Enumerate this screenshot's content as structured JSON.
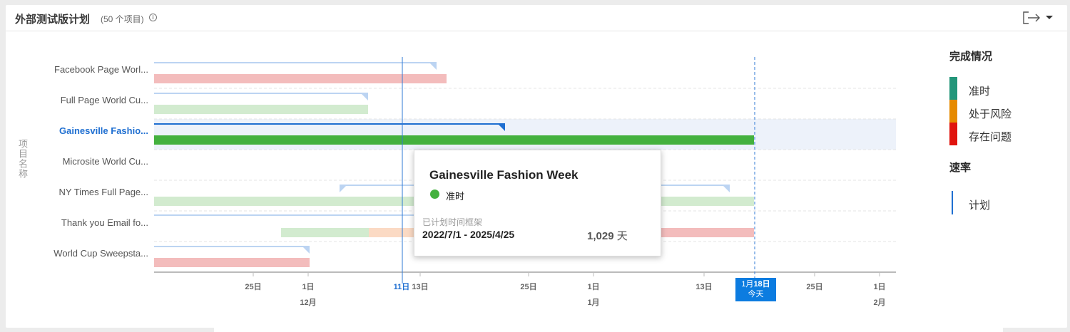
{
  "header": {
    "title": "外部测试版计划",
    "count": "(50 个项目)",
    "info_icon": "info-icon",
    "export_icon": "export-icon",
    "menu_icon": "chevron-down-icon"
  },
  "yaxis_title": "项目名称",
  "rows": [
    {
      "label": "Facebook Page Worl...",
      "selected": false
    },
    {
      "label": "Full Page World Cu...",
      "selected": false
    },
    {
      "label": "Gainesville Fashio...",
      "selected": true
    },
    {
      "label": "Microsite World Cu...",
      "selected": false
    },
    {
      "label": "NY Times Full Page...",
      "selected": false
    },
    {
      "label": "Thank you Email fo...",
      "selected": false
    },
    {
      "label": "World Cup Sweepsta...",
      "selected": false
    }
  ],
  "timeline": {
    "ticks": [
      {
        "day": "25日",
        "month": ""
      },
      {
        "day": "1日",
        "month": "12月"
      },
      {
        "day": "11日",
        "month": "",
        "current": true
      },
      {
        "day": "13日",
        "month": ""
      },
      {
        "day": "25日",
        "month": ""
      },
      {
        "day": "1日",
        "month": "1月"
      },
      {
        "day": "13日",
        "month": ""
      },
      {
        "day": "25日",
        "month": ""
      },
      {
        "day": "1日",
        "month": "2月"
      }
    ],
    "today": {
      "date_prefix": "1月",
      "date_bold": "18日",
      "label": "今天"
    }
  },
  "tooltip": {
    "title": "Gainesville Fashion Week",
    "status": "准时",
    "timeframe_label": "已计划时间框架",
    "date_range": "2022/7/1 - 2025/4/25",
    "days_number": "1,029",
    "days_unit": "天"
  },
  "legend": {
    "completion_title": "完成情况",
    "items": [
      {
        "label": "准时",
        "color": "#23967a"
      },
      {
        "label": "处于风险",
        "color": "#e68a00"
      },
      {
        "label": "存在问题",
        "color": "#e0140e"
      }
    ],
    "rate_title": "速率",
    "plan_label": "计划",
    "plan_color": "#1f6fd1"
  },
  "colors": {
    "plan_line": "#bcd4f2",
    "selected_plan_line": "#1f6fd1",
    "on_time": "#d2ebcf",
    "on_time_selected": "#44b13e",
    "at_risk": "#fbdac4",
    "issue": "#f3bcbc",
    "selected_row_bg": "#edf2fa"
  }
}
